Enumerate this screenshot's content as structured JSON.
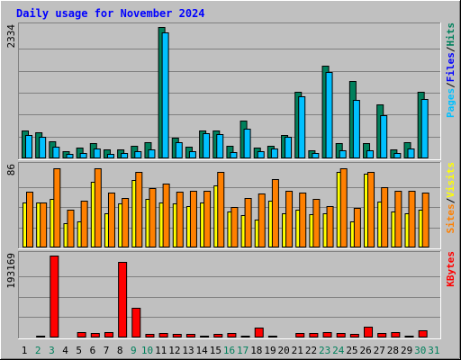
{
  "title": "Daily usage for November 2024",
  "colors": {
    "background": "#c0c0c0",
    "title": "#0000ff",
    "pages": "#00805c",
    "files": "#00c0ff",
    "hits": "#00805c",
    "visits": "#ffff00",
    "sites": "#ff8000",
    "kbytes": "#ff0000",
    "weekend_day": "#00805c",
    "weekday": "#000000",
    "grid": "#808080"
  },
  "chart_data": [
    {
      "type": "bar",
      "panel": "hits",
      "legend": [
        {
          "name": "Pages",
          "color": "#00c0ff"
        },
        {
          "name": "/",
          "color": "#000000"
        },
        {
          "name": "Files",
          "color": "#0000ff"
        },
        {
          "name": "/",
          "color": "#000000"
        },
        {
          "name": "Hits",
          "color": "#00805c"
        }
      ],
      "ymax_label": "2334",
      "ylim": [
        0,
        2334
      ],
      "categories": [
        "1",
        "2",
        "3",
        "4",
        "5",
        "6",
        "7",
        "8",
        "9",
        "10",
        "11",
        "12",
        "13",
        "14",
        "15",
        "16",
        "17",
        "18",
        "19",
        "20",
        "21",
        "22",
        "23",
        "24",
        "25",
        "26",
        "27",
        "28",
        "29",
        "30"
      ],
      "series": [
        {
          "name": "Hits",
          "values": [
            490,
            470,
            300,
            120,
            190,
            270,
            160,
            160,
            230,
            280,
            2334,
            360,
            200,
            500,
            500,
            230,
            670,
            190,
            230,
            420,
            1190,
            140,
            1640,
            270,
            1370,
            270,
            960,
            160,
            290,
            1190
          ]
        },
        {
          "name": "Files",
          "values": [
            410,
            390,
            200,
            80,
            100,
            170,
            80,
            100,
            130,
            160,
            2240,
            290,
            130,
            440,
            430,
            110,
            520,
            120,
            170,
            380,
            1100,
            90,
            1540,
            150,
            1040,
            150,
            760,
            100,
            170,
            1060
          ]
        },
        {
          "name": "Pages",
          "values": [
            50,
            50,
            40,
            20,
            30,
            40,
            20,
            20,
            30,
            40,
            70,
            40,
            30,
            50,
            50,
            30,
            60,
            30,
            30,
            40,
            60,
            20,
            70,
            30,
            60,
            30,
            50,
            20,
            30,
            60
          ]
        }
      ]
    },
    {
      "type": "bar",
      "panel": "visits",
      "legend": [
        {
          "name": "Sites",
          "color": "#ff8000"
        },
        {
          "name": "/",
          "color": "#000000"
        },
        {
          "name": "Visits",
          "color": "#ffff00"
        }
      ],
      "ymax_label": "86",
      "ylim": [
        0,
        86
      ],
      "categories": [
        "1",
        "2",
        "3",
        "4",
        "5",
        "6",
        "7",
        "8",
        "9",
        "10",
        "11",
        "12",
        "13",
        "14",
        "15",
        "16",
        "17",
        "18",
        "19",
        "20",
        "21",
        "22",
        "23",
        "24",
        "25",
        "26",
        "27",
        "28",
        "29",
        "30"
      ],
      "series": [
        {
          "name": "Visits",
          "values": [
            48,
            48,
            52,
            26,
            28,
            70,
            36,
            47,
            72,
            52,
            48,
            47,
            44,
            48,
            66,
            38,
            34,
            30,
            50,
            36,
            40,
            35,
            36,
            80,
            28,
            78,
            49,
            38,
            36,
            40
          ]
        },
        {
          "name": "Sites",
          "values": [
            59,
            48,
            84,
            40,
            50,
            84,
            58,
            53,
            80,
            63,
            68,
            59,
            60,
            60,
            80,
            43,
            53,
            57,
            73,
            60,
            58,
            52,
            44,
            84,
            42,
            80,
            64,
            60,
            60,
            58
          ]
        }
      ]
    },
    {
      "type": "bar",
      "panel": "kbytes",
      "legend": [
        {
          "name": "KBytes",
          "color": "#ff0000"
        }
      ],
      "ymax_label": "193169",
      "ylim": [
        0,
        193169
      ],
      "categories": [
        "1",
        "2",
        "3",
        "4",
        "5",
        "6",
        "7",
        "8",
        "9",
        "10",
        "11",
        "12",
        "13",
        "14",
        "15",
        "16",
        "17",
        "18",
        "19",
        "20",
        "21",
        "22",
        "23",
        "24",
        "25",
        "26",
        "27",
        "28",
        "29",
        "30"
      ],
      "series": [
        {
          "name": "KBytes",
          "values": [
            3000,
            5000,
            193169,
            2000,
            13000,
            10000,
            12000,
            179000,
            70000,
            8000,
            11000,
            9000,
            8000,
            4000,
            8000,
            11000,
            5000,
            24000,
            5000,
            2000,
            10000,
            10000,
            13000,
            11000,
            8000,
            26000,
            11000,
            13000,
            4000,
            17000
          ]
        }
      ]
    }
  ],
  "x_axis": {
    "labels": [
      "1",
      "2",
      "3",
      "4",
      "5",
      "6",
      "7",
      "8",
      "9",
      "10",
      "11",
      "12",
      "13",
      "14",
      "15",
      "16",
      "17",
      "18",
      "19",
      "20",
      "21",
      "22",
      "23",
      "24",
      "25",
      "26",
      "27",
      "28",
      "29",
      "30",
      "31"
    ],
    "weekend_days": [
      "2",
      "3",
      "9",
      "10",
      "16",
      "17",
      "23",
      "24",
      "30",
      "31"
    ]
  }
}
